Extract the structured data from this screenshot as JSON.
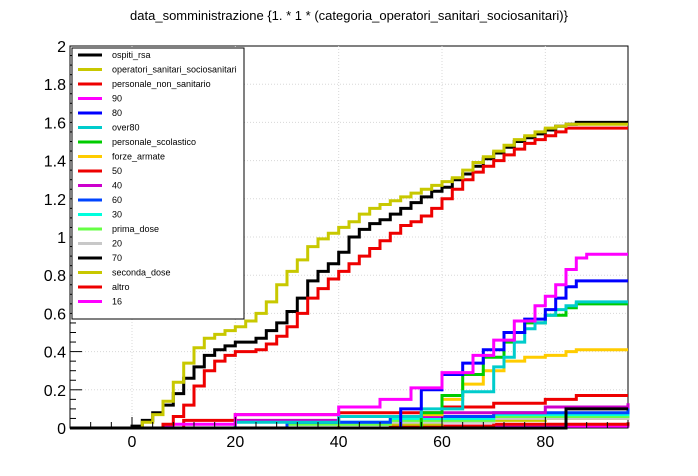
{
  "chart_data": {
    "type": "line",
    "title": "data_somministrazione  {1. * 1 * (categoria_operatori_sanitari_sociosanitari)}",
    "xlabel": "",
    "ylabel": "",
    "xlim": [
      -12,
      96
    ],
    "ylim": [
      0,
      2
    ],
    "grid": true,
    "legend_position": "top-left",
    "x_ticks": [
      0,
      20,
      40,
      60,
      80
    ],
    "y_ticks": [
      0,
      0.2,
      0.4,
      0.6,
      0.8,
      1,
      1.2,
      1.4,
      1.6,
      1.8,
      2
    ],
    "y_tick_labels": [
      "0",
      "0.2",
      "0.4",
      "0.6",
      "0.8",
      "1",
      "1.2",
      "1.4",
      "1.6",
      "1.8",
      "2"
    ],
    "series": [
      {
        "name": "ospiti_rsa",
        "color": "#000000",
        "points": [
          [
            -12,
            0
          ],
          [
            80,
            0
          ],
          [
            84,
            0.1
          ],
          [
            96,
            0.1
          ]
        ]
      },
      {
        "name": "operatori_sanitari_sociosanitari",
        "color": "#c8c800",
        "points": [
          [
            -12,
            0
          ],
          [
            0,
            0
          ],
          [
            2,
            0.03
          ],
          [
            4,
            0.07
          ],
          [
            6,
            0.14
          ],
          [
            8,
            0.24
          ],
          [
            10,
            0.34
          ],
          [
            12,
            0.42
          ],
          [
            14,
            0.47
          ],
          [
            16,
            0.49
          ],
          [
            18,
            0.51
          ],
          [
            20,
            0.53
          ],
          [
            22,
            0.56
          ],
          [
            24,
            0.6
          ],
          [
            26,
            0.66
          ],
          [
            28,
            0.75
          ],
          [
            30,
            0.82
          ],
          [
            32,
            0.88
          ],
          [
            34,
            0.95
          ],
          [
            36,
            0.99
          ],
          [
            38,
            1.02
          ],
          [
            40,
            1.05
          ],
          [
            42,
            1.08
          ],
          [
            44,
            1.12
          ],
          [
            46,
            1.15
          ],
          [
            48,
            1.17
          ],
          [
            50,
            1.19
          ],
          [
            52,
            1.21
          ],
          [
            54,
            1.23
          ],
          [
            56,
            1.25
          ],
          [
            58,
            1.27
          ],
          [
            60,
            1.29
          ],
          [
            62,
            1.31
          ],
          [
            64,
            1.35
          ],
          [
            66,
            1.39
          ],
          [
            68,
            1.42
          ],
          [
            70,
            1.45
          ],
          [
            72,
            1.48
          ],
          [
            74,
            1.51
          ],
          [
            76,
            1.53
          ],
          [
            78,
            1.55
          ],
          [
            80,
            1.57
          ],
          [
            82,
            1.58
          ],
          [
            84,
            1.59
          ],
          [
            96,
            1.59
          ]
        ]
      },
      {
        "name": "personale_non_sanitario",
        "color": "#ee0000",
        "points": [
          [
            -12,
            0
          ],
          [
            4,
            0
          ],
          [
            6,
            0.02
          ],
          [
            8,
            0.06
          ],
          [
            10,
            0.12
          ],
          [
            12,
            0.22
          ],
          [
            14,
            0.3
          ],
          [
            16,
            0.35
          ],
          [
            18,
            0.38
          ],
          [
            20,
            0.4
          ],
          [
            22,
            0.4
          ],
          [
            24,
            0.41
          ],
          [
            26,
            0.44
          ],
          [
            28,
            0.48
          ],
          [
            30,
            0.53
          ],
          [
            32,
            0.6
          ],
          [
            34,
            0.68
          ],
          [
            36,
            0.73
          ],
          [
            38,
            0.78
          ],
          [
            40,
            0.82
          ],
          [
            42,
            0.86
          ],
          [
            44,
            0.9
          ],
          [
            46,
            0.94
          ],
          [
            48,
            0.98
          ],
          [
            50,
            1.02
          ],
          [
            52,
            1.06
          ],
          [
            54,
            1.08
          ],
          [
            56,
            1.11
          ],
          [
            58,
            1.15
          ],
          [
            60,
            1.2
          ],
          [
            62,
            1.25
          ],
          [
            64,
            1.3
          ],
          [
            66,
            1.34
          ],
          [
            68,
            1.37
          ],
          [
            70,
            1.4
          ],
          [
            72,
            1.43
          ],
          [
            74,
            1.46
          ],
          [
            76,
            1.49
          ],
          [
            78,
            1.51
          ],
          [
            80,
            1.53
          ],
          [
            82,
            1.55
          ],
          [
            84,
            1.57
          ],
          [
            96,
            1.57
          ]
        ]
      },
      {
        "name": "90",
        "color": "#ff00ff",
        "points": [
          [
            -12,
            0
          ],
          [
            4,
            0
          ],
          [
            6,
            0.01
          ],
          [
            8,
            0.02
          ],
          [
            20,
            0.07
          ],
          [
            40,
            0.11
          ],
          [
            48,
            0.15
          ],
          [
            54,
            0.21
          ],
          [
            60,
            0.29
          ],
          [
            66,
            0.38
          ],
          [
            70,
            0.46
          ],
          [
            74,
            0.56
          ],
          [
            78,
            0.64
          ],
          [
            80,
            0.69
          ],
          [
            82,
            0.75
          ],
          [
            84,
            0.83
          ],
          [
            86,
            0.89
          ],
          [
            88,
            0.91
          ],
          [
            96,
            0.91
          ]
        ]
      },
      {
        "name": "80",
        "color": "#0000ff",
        "points": [
          [
            -12,
            0
          ],
          [
            50,
            0
          ],
          [
            52,
            0.1
          ],
          [
            56,
            0.2
          ],
          [
            60,
            0.28
          ],
          [
            64,
            0.34
          ],
          [
            68,
            0.41
          ],
          [
            72,
            0.5
          ],
          [
            76,
            0.57
          ],
          [
            80,
            0.62
          ],
          [
            82,
            0.68
          ],
          [
            84,
            0.74
          ],
          [
            86,
            0.77
          ],
          [
            96,
            0.77
          ]
        ]
      },
      {
        "name": "over80",
        "color": "#00cccc",
        "points": [
          [
            -12,
            0
          ],
          [
            10,
            0
          ],
          [
            20,
            0.03
          ],
          [
            40,
            0.06
          ],
          [
            56,
            0.1
          ],
          [
            64,
            0.19
          ],
          [
            70,
            0.32
          ],
          [
            72,
            0.37
          ],
          [
            74,
            0.45
          ],
          [
            76,
            0.52
          ],
          [
            78,
            0.55
          ],
          [
            80,
            0.59
          ],
          [
            82,
            0.62
          ],
          [
            84,
            0.64
          ],
          [
            86,
            0.66
          ],
          [
            96,
            0.66
          ]
        ]
      },
      {
        "name": "personale_scolastico",
        "color": "#00cc00",
        "points": [
          [
            -12,
            0
          ],
          [
            52,
            0
          ],
          [
            56,
            0.08
          ],
          [
            60,
            0.17
          ],
          [
            64,
            0.28
          ],
          [
            68,
            0.37
          ],
          [
            72,
            0.45
          ],
          [
            74,
            0.5
          ],
          [
            76,
            0.55
          ],
          [
            80,
            0.59
          ],
          [
            84,
            0.63
          ],
          [
            86,
            0.65
          ],
          [
            96,
            0.65
          ]
        ]
      },
      {
        "name": "forze_armate",
        "color": "#ffcc00",
        "points": [
          [
            -12,
            0
          ],
          [
            52,
            0
          ],
          [
            56,
            0.07
          ],
          [
            60,
            0.15
          ],
          [
            64,
            0.23
          ],
          [
            68,
            0.3
          ],
          [
            72,
            0.35
          ],
          [
            76,
            0.37
          ],
          [
            80,
            0.38
          ],
          [
            84,
            0.4
          ],
          [
            86,
            0.41
          ],
          [
            96,
            0.41
          ]
        ]
      },
      {
        "name": "50",
        "color": "#ee0000",
        "points": [
          [
            -12,
            0
          ],
          [
            6,
            0
          ],
          [
            10,
            0.04
          ],
          [
            20,
            0.07
          ],
          [
            40,
            0.08
          ],
          [
            60,
            0.11
          ],
          [
            70,
            0.13
          ],
          [
            80,
            0.15
          ],
          [
            86,
            0.17
          ],
          [
            96,
            0.17
          ]
        ]
      },
      {
        "name": "40",
        "color": "#cc00cc",
        "points": [
          [
            -12,
            0
          ],
          [
            8,
            0
          ],
          [
            20,
            0.04
          ],
          [
            40,
            0.06
          ],
          [
            60,
            0.08
          ],
          [
            80,
            0.11
          ],
          [
            96,
            0.13
          ]
        ]
      },
      {
        "name": "60",
        "color": "#0044ff",
        "points": [
          [
            -12,
            0
          ],
          [
            10,
            0
          ],
          [
            30,
            0.03
          ],
          [
            50,
            0.06
          ],
          [
            70,
            0.08
          ],
          [
            96,
            0.11
          ]
        ]
      },
      {
        "name": "30",
        "color": "#00ffdd",
        "points": [
          [
            -12,
            0
          ],
          [
            10,
            0
          ],
          [
            30,
            0.03
          ],
          [
            50,
            0.05
          ],
          [
            70,
            0.07
          ],
          [
            96,
            0.09
          ]
        ]
      },
      {
        "name": "prima_dose",
        "color": "#66ff44",
        "points": [
          [
            -12,
            0
          ],
          [
            12,
            0
          ],
          [
            30,
            0.02
          ],
          [
            50,
            0.04
          ],
          [
            70,
            0.06
          ],
          [
            96,
            0.08
          ]
        ]
      },
      {
        "name": "20",
        "color": "#c8c8c8",
        "points": [
          [
            -12,
            0
          ],
          [
            12,
            0
          ],
          [
            30,
            0.02
          ],
          [
            50,
            0.03
          ],
          [
            70,
            0.05
          ],
          [
            96,
            0.07
          ]
        ]
      },
      {
        "name": "70",
        "color": "#000000",
        "points": [
          [
            -12,
            0
          ],
          [
            -2,
            0
          ],
          [
            0,
            0.01
          ],
          [
            2,
            0.04
          ],
          [
            4,
            0.08
          ],
          [
            6,
            0.12
          ],
          [
            8,
            0.18
          ],
          [
            10,
            0.26
          ],
          [
            12,
            0.32
          ],
          [
            14,
            0.38
          ],
          [
            16,
            0.41
          ],
          [
            18,
            0.43
          ],
          [
            20,
            0.45
          ],
          [
            22,
            0.45
          ],
          [
            24,
            0.47
          ],
          [
            26,
            0.51
          ],
          [
            28,
            0.55
          ],
          [
            30,
            0.61
          ],
          [
            32,
            0.68
          ],
          [
            34,
            0.77
          ],
          [
            36,
            0.82
          ],
          [
            38,
            0.86
          ],
          [
            40,
            0.92
          ],
          [
            42,
            1.0
          ],
          [
            44,
            1.04
          ],
          [
            46,
            1.07
          ],
          [
            48,
            1.09
          ],
          [
            50,
            1.12
          ],
          [
            52,
            1.15
          ],
          [
            54,
            1.18
          ],
          [
            56,
            1.21
          ],
          [
            58,
            1.24
          ],
          [
            60,
            1.26
          ],
          [
            62,
            1.3
          ],
          [
            64,
            1.33
          ],
          [
            66,
            1.37
          ],
          [
            68,
            1.41
          ],
          [
            70,
            1.44
          ],
          [
            72,
            1.47
          ],
          [
            74,
            1.5
          ],
          [
            76,
            1.52
          ],
          [
            78,
            1.54
          ],
          [
            80,
            1.56
          ],
          [
            82,
            1.58
          ],
          [
            84,
            1.59
          ],
          [
            86,
            1.6
          ],
          [
            96,
            1.6
          ]
        ]
      },
      {
        "name": "seconda_dose",
        "color": "#c8c800",
        "points": [
          [
            -12,
            0
          ],
          [
            20,
            0
          ],
          [
            40,
            0.02
          ],
          [
            60,
            0.04
          ],
          [
            80,
            0.05
          ],
          [
            96,
            0.06
          ]
        ]
      },
      {
        "name": "altro",
        "color": "#ee0000",
        "points": [
          [
            -12,
            0
          ],
          [
            30,
            0
          ],
          [
            50,
            0.01
          ],
          [
            70,
            0.02
          ],
          [
            96,
            0.03
          ]
        ]
      },
      {
        "name": "16",
        "color": "#ff00ff",
        "points": [
          [
            -12,
            0
          ],
          [
            40,
            0
          ],
          [
            60,
            0.01
          ],
          [
            96,
            0.02
          ]
        ]
      }
    ]
  }
}
